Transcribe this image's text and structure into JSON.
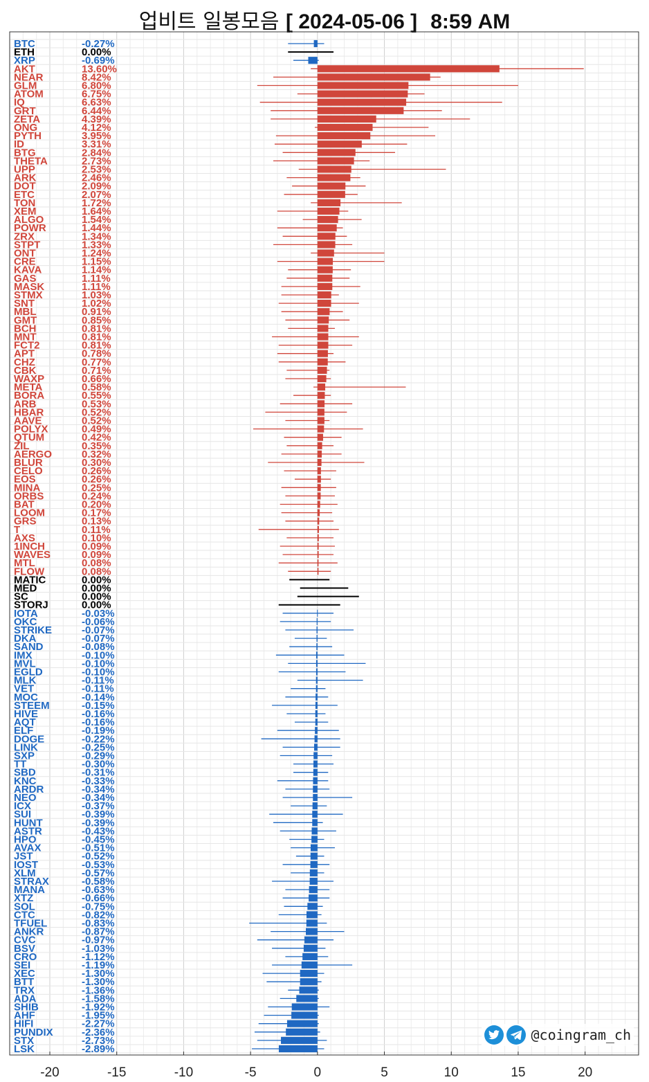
{
  "title": {
    "main": "업비트 일봉모음",
    "date": "[ 2024-05-06 ]",
    "time": "8:59 AM"
  },
  "watermark": {
    "handle": "@coingram_ch"
  },
  "colors": {
    "up": "#d0463b",
    "down": "#1f68c2",
    "flat": "#000000"
  },
  "chart_data": {
    "type": "bar",
    "orientation": "horizontal",
    "xlim": [
      -23,
      24
    ],
    "xticks": [
      -20,
      -15,
      -10,
      -5,
      0,
      5,
      10,
      15,
      20
    ],
    "grid": true,
    "items": [
      {
        "name": "BTC",
        "value": -0.27,
        "label": "-0.27%",
        "low": -2.2,
        "high": 0.5
      },
      {
        "name": "ETH",
        "value": 0.0,
        "label": "0.00%",
        "low": -2.2,
        "high": 1.2
      },
      {
        "name": "XRP",
        "value": -0.69,
        "label": "-0.69%",
        "low": -1.8,
        "high": 0.1
      },
      {
        "name": "AKT",
        "value": 13.6,
        "label": "13.60%",
        "low": -0.5,
        "high": 19.9
      },
      {
        "name": "NEAR",
        "value": 8.42,
        "label": "8.42%",
        "low": -3.3,
        "high": 9.2
      },
      {
        "name": "GLM",
        "value": 6.8,
        "label": "6.80%",
        "low": -4.5,
        "high": 15.0
      },
      {
        "name": "ATOM",
        "value": 6.75,
        "label": "6.75%",
        "low": -1.5,
        "high": 8.0
      },
      {
        "name": "IQ",
        "value": 6.63,
        "label": "6.63%",
        "low": -4.3,
        "high": 13.8
      },
      {
        "name": "GRT",
        "value": 6.44,
        "label": "6.44%",
        "low": -3.5,
        "high": 9.3
      },
      {
        "name": "ZETA",
        "value": 4.39,
        "label": "4.39%",
        "low": -3.5,
        "high": 11.4
      },
      {
        "name": "ONG",
        "value": 4.12,
        "label": "4.12%",
        "low": -0.2,
        "high": 8.3
      },
      {
        "name": "PYTH",
        "value": 3.95,
        "label": "3.95%",
        "low": -3.1,
        "high": 8.8
      },
      {
        "name": "ID",
        "value": 3.31,
        "label": "3.31%",
        "low": -3.2,
        "high": 6.7
      },
      {
        "name": "BTG",
        "value": 2.84,
        "label": "2.84%",
        "low": -2.6,
        "high": 5.8
      },
      {
        "name": "THETA",
        "value": 2.73,
        "label": "2.73%",
        "low": -3.3,
        "high": 3.9
      },
      {
        "name": "UPP",
        "value": 2.53,
        "label": "2.53%",
        "low": -1.4,
        "high": 9.6
      },
      {
        "name": "ARK",
        "value": 2.46,
        "label": "2.46%",
        "low": -2.3,
        "high": 3.2
      },
      {
        "name": "DOT",
        "value": 2.09,
        "label": "2.09%",
        "low": -1.9,
        "high": 3.6
      },
      {
        "name": "ETC",
        "value": 2.07,
        "label": "2.07%",
        "low": -2.5,
        "high": 3.0
      },
      {
        "name": "TON",
        "value": 1.72,
        "label": "1.72%",
        "low": -0.5,
        "high": 6.3
      },
      {
        "name": "XEM",
        "value": 1.64,
        "label": "1.64%",
        "low": -3.0,
        "high": 2.3
      },
      {
        "name": "ALGO",
        "value": 1.54,
        "label": "1.54%",
        "low": -1.1,
        "high": 3.3
      },
      {
        "name": "POWR",
        "value": 1.44,
        "label": "1.44%",
        "low": -3.0,
        "high": 1.9
      },
      {
        "name": "ZRX",
        "value": 1.34,
        "label": "1.34%",
        "low": -2.6,
        "high": 2.2
      },
      {
        "name": "STPT",
        "value": 1.33,
        "label": "1.33%",
        "low": -3.3,
        "high": 2.6
      },
      {
        "name": "ONT",
        "value": 1.24,
        "label": "1.24%",
        "low": -0.5,
        "high": 5.0
      },
      {
        "name": "CRE",
        "value": 1.15,
        "label": "1.15%",
        "low": -3.0,
        "high": 5.0
      },
      {
        "name": "KAVA",
        "value": 1.14,
        "label": "1.14%",
        "low": -2.2,
        "high": 2.5
      },
      {
        "name": "GAS",
        "value": 1.11,
        "label": "1.11%",
        "low": -2.3,
        "high": 2.4
      },
      {
        "name": "MASK",
        "value": 1.11,
        "label": "1.11%",
        "low": -2.7,
        "high": 3.2
      },
      {
        "name": "STMX",
        "value": 1.03,
        "label": "1.03%",
        "low": -2.7,
        "high": 1.6
      },
      {
        "name": "SNT",
        "value": 1.02,
        "label": "1.02%",
        "low": -2.9,
        "high": 3.1
      },
      {
        "name": "MBL",
        "value": 0.91,
        "label": "0.91%",
        "low": -2.7,
        "high": 1.9
      },
      {
        "name": "GMT",
        "value": 0.85,
        "label": "0.85%",
        "low": -2.4,
        "high": 2.4
      },
      {
        "name": "BCH",
        "value": 0.81,
        "label": "0.81%",
        "low": -2.2,
        "high": 1.3
      },
      {
        "name": "MNT",
        "value": 0.81,
        "label": "0.81%",
        "low": -3.4,
        "high": 3.1
      },
      {
        "name": "FCT2",
        "value": 0.81,
        "label": "0.81%",
        "low": -2.9,
        "high": 2.6
      },
      {
        "name": "APT",
        "value": 0.78,
        "label": "0.78%",
        "low": -3.0,
        "high": 1.2
      },
      {
        "name": "CHZ",
        "value": 0.77,
        "label": "0.77%",
        "low": -2.9,
        "high": 2.1
      },
      {
        "name": "CBK",
        "value": 0.71,
        "label": "0.71%",
        "low": -2.3,
        "high": 0.9
      },
      {
        "name": "WAXP",
        "value": 0.66,
        "label": "0.66%",
        "low": -2.4,
        "high": 1.0
      },
      {
        "name": "META",
        "value": 0.58,
        "label": "0.58%",
        "low": -0.3,
        "high": 6.6
      },
      {
        "name": "BORA",
        "value": 0.55,
        "label": "0.55%",
        "low": -1.8,
        "high": 1.0
      },
      {
        "name": "ARB",
        "value": 0.53,
        "label": "0.53%",
        "low": -2.8,
        "high": 2.6
      },
      {
        "name": "HBAR",
        "value": 0.52,
        "label": "0.52%",
        "low": -3.9,
        "high": 2.2
      },
      {
        "name": "AAVE",
        "value": 0.52,
        "label": "0.52%",
        "low": -2.4,
        "high": 0.9
      },
      {
        "name": "POLYX",
        "value": 0.49,
        "label": "0.49%",
        "low": -4.8,
        "high": 3.4
      },
      {
        "name": "QTUM",
        "value": 0.42,
        "label": "0.42%",
        "low": -2.5,
        "high": 1.8
      },
      {
        "name": "ZIL",
        "value": 0.35,
        "label": "0.35%",
        "low": -2.3,
        "high": 1.2
      },
      {
        "name": "AERGO",
        "value": 0.32,
        "label": "0.32%",
        "low": -2.7,
        "high": 1.8
      },
      {
        "name": "BLUR",
        "value": 0.3,
        "label": "0.30%",
        "low": -3.7,
        "high": 3.5
      },
      {
        "name": "CELO",
        "value": 0.26,
        "label": "0.26%",
        "low": -2.5,
        "high": 1.4
      },
      {
        "name": "EOS",
        "value": 0.26,
        "label": "0.26%",
        "low": -1.7,
        "high": 1.0
      },
      {
        "name": "MINA",
        "value": 0.25,
        "label": "0.25%",
        "low": -2.7,
        "high": 1.4
      },
      {
        "name": "ORBS",
        "value": 0.24,
        "label": "0.24%",
        "low": -2.4,
        "high": 1.3
      },
      {
        "name": "BAT",
        "value": 0.2,
        "label": "0.20%",
        "low": -2.8,
        "high": 1.5
      },
      {
        "name": "LOOM",
        "value": 0.17,
        "label": "0.17%",
        "low": -2.7,
        "high": 1.1
      },
      {
        "name": "GRS",
        "value": 0.13,
        "label": "0.13%",
        "low": -2.4,
        "high": 1.2
      },
      {
        "name": "T",
        "value": 0.11,
        "label": "0.11%",
        "low": -4.4,
        "high": 1.6
      },
      {
        "name": "AXS",
        "value": 0.1,
        "label": "0.10%",
        "low": -2.3,
        "high": 1.2
      },
      {
        "name": "1INCH",
        "value": 0.09,
        "label": "0.09%",
        "low": -2.8,
        "high": 1.3
      },
      {
        "name": "WAVES",
        "value": 0.09,
        "label": "0.09%",
        "low": -2.6,
        "high": 1.2
      },
      {
        "name": "MTL",
        "value": 0.08,
        "label": "0.08%",
        "low": -2.9,
        "high": 1.5
      },
      {
        "name": "FLOW",
        "value": 0.08,
        "label": "0.08%",
        "low": -2.2,
        "high": 1.0
      },
      {
        "name": "MATIC",
        "value": 0.0,
        "label": "0.00%",
        "low": -2.1,
        "high": 0.9
      },
      {
        "name": "MED",
        "value": 0.0,
        "label": "0.00%",
        "low": -1.3,
        "high": 2.3
      },
      {
        "name": "SC",
        "value": 0.0,
        "label": "0.00%",
        "low": -1.5,
        "high": 3.1
      },
      {
        "name": "STORJ",
        "value": 0.0,
        "label": "0.00%",
        "low": -2.9,
        "high": 1.7
      },
      {
        "name": "IOTA",
        "value": -0.03,
        "label": "-0.03%",
        "low": -2.6,
        "high": 1.2
      },
      {
        "name": "OKC",
        "value": -0.06,
        "label": "-0.06%",
        "low": -2.8,
        "high": 1.0
      },
      {
        "name": "STRIKE",
        "value": -0.07,
        "label": "-0.07%",
        "low": -2.4,
        "high": 2.7
      },
      {
        "name": "DKA",
        "value": -0.07,
        "label": "-0.07%",
        "low": -1.7,
        "high": 0.7
      },
      {
        "name": "SAND",
        "value": -0.08,
        "label": "-0.08%",
        "low": -2.1,
        "high": 1.1
      },
      {
        "name": "IMX",
        "value": -0.1,
        "label": "-0.10%",
        "low": -3.1,
        "high": 2.0
      },
      {
        "name": "MVL",
        "value": -0.1,
        "label": "-0.10%",
        "low": -2.2,
        "high": 3.6
      },
      {
        "name": "EGLD",
        "value": -0.1,
        "label": "-0.10%",
        "low": -2.9,
        "high": 2.1
      },
      {
        "name": "MLK",
        "value": -0.11,
        "label": "-0.11%",
        "low": -1.5,
        "high": 3.4
      },
      {
        "name": "VET",
        "value": -0.11,
        "label": "-0.11%",
        "low": -2.0,
        "high": 0.6
      },
      {
        "name": "MOC",
        "value": -0.14,
        "label": "-0.14%",
        "low": -2.4,
        "high": 0.8
      },
      {
        "name": "STEEM",
        "value": -0.15,
        "label": "-0.15%",
        "low": -3.4,
        "high": 1.5
      },
      {
        "name": "HIVE",
        "value": -0.16,
        "label": "-0.16%",
        "low": -2.3,
        "high": 0.6
      },
      {
        "name": "AQT",
        "value": -0.16,
        "label": "-0.16%",
        "low": -1.7,
        "high": 0.8
      },
      {
        "name": "ELF",
        "value": -0.19,
        "label": "-0.19%",
        "low": -3.0,
        "high": 1.6
      },
      {
        "name": "DOGE",
        "value": -0.22,
        "label": "-0.22%",
        "low": -4.2,
        "high": 1.7
      },
      {
        "name": "LINK",
        "value": -0.25,
        "label": "-0.25%",
        "low": -2.6,
        "high": 1.7
      },
      {
        "name": "SXP",
        "value": -0.29,
        "label": "-0.29%",
        "low": -2.8,
        "high": 1.1
      },
      {
        "name": "TT",
        "value": -0.3,
        "label": "-0.30%",
        "low": -1.8,
        "high": 1.2
      },
      {
        "name": "SBD",
        "value": -0.31,
        "label": "-0.31%",
        "low": -1.8,
        "high": 0.8
      },
      {
        "name": "KNC",
        "value": -0.33,
        "label": "-0.33%",
        "low": -3.0,
        "high": 0.8
      },
      {
        "name": "ARDR",
        "value": -0.34,
        "label": "-0.34%",
        "low": -2.4,
        "high": 0.9
      },
      {
        "name": "NEO",
        "value": -0.34,
        "label": "-0.34%",
        "low": -2.6,
        "high": 2.6
      },
      {
        "name": "ICX",
        "value": -0.37,
        "label": "-0.37%",
        "low": -2.0,
        "high": 0.7
      },
      {
        "name": "SUI",
        "value": -0.39,
        "label": "-0.39%",
        "low": -3.6,
        "high": 1.9
      },
      {
        "name": "HUNT",
        "value": -0.39,
        "label": "-0.39%",
        "low": -3.3,
        "high": 0.4
      },
      {
        "name": "ASTR",
        "value": -0.43,
        "label": "-0.43%",
        "low": -2.8,
        "high": 1.4
      },
      {
        "name": "HPO",
        "value": -0.45,
        "label": "-0.45%",
        "low": -2.1,
        "high": 0.5
      },
      {
        "name": "AVAX",
        "value": -0.51,
        "label": "-0.51%",
        "low": -2.0,
        "high": 1.3
      },
      {
        "name": "JST",
        "value": -0.52,
        "label": "-0.52%",
        "low": -1.6,
        "high": 0.5
      },
      {
        "name": "IOST",
        "value": -0.53,
        "label": "-0.53%",
        "low": -2.6,
        "high": 0.9
      },
      {
        "name": "XLM",
        "value": -0.57,
        "label": "-0.57%",
        "low": -2.0,
        "high": 0.5
      },
      {
        "name": "STRAX",
        "value": -0.58,
        "label": "-0.58%",
        "low": -3.4,
        "high": 1.2
      },
      {
        "name": "MANA",
        "value": -0.63,
        "label": "-0.63%",
        "low": -2.4,
        "high": 0.9
      },
      {
        "name": "XTZ",
        "value": -0.66,
        "label": "-0.66%",
        "low": -2.6,
        "high": 0.9
      },
      {
        "name": "SOL",
        "value": -0.75,
        "label": "-0.75%",
        "low": -2.5,
        "high": 0.4
      },
      {
        "name": "CTC",
        "value": -0.82,
        "label": "-0.82%",
        "low": -2.9,
        "high": 0.3
      },
      {
        "name": "TFUEL",
        "value": -0.83,
        "label": "-0.83%",
        "low": -5.1,
        "high": 0.7
      },
      {
        "name": "ANKR",
        "value": -0.87,
        "label": "-0.87%",
        "low": -3.5,
        "high": 2.0
      },
      {
        "name": "CVC",
        "value": -0.97,
        "label": "-0.97%",
        "low": -4.5,
        "high": 1.2
      },
      {
        "name": "BSV",
        "value": -1.03,
        "label": "-1.03%",
        "low": -3.4,
        "high": 0.6
      },
      {
        "name": "CRO",
        "value": -1.12,
        "label": "-1.12%",
        "low": -2.4,
        "high": 0.8
      },
      {
        "name": "SEI",
        "value": -1.19,
        "label": "-1.19%",
        "low": -3.4,
        "high": 2.6
      },
      {
        "name": "XEC",
        "value": -1.3,
        "label": "-1.30%",
        "low": -4.1,
        "high": 0.5
      },
      {
        "name": "BTT",
        "value": -1.3,
        "label": "-1.30%",
        "low": -3.8,
        "high": 0.3
      },
      {
        "name": "TRX",
        "value": -1.36,
        "label": "-1.36%",
        "low": -2.2,
        "high": 0.1
      },
      {
        "name": "ADA",
        "value": -1.58,
        "label": "-1.58%",
        "low": -2.8,
        "high": 0.1
      },
      {
        "name": "SHIB",
        "value": -1.92,
        "label": "-1.92%",
        "low": -3.7,
        "high": 0.9
      },
      {
        "name": "AHF",
        "value": -1.95,
        "label": "-1.95%",
        "low": -4.0,
        "high": 0.1
      },
      {
        "name": "HIFI",
        "value": -2.27,
        "label": "-2.27%",
        "low": -4.4,
        "high": 0.1
      },
      {
        "name": "PUNDIX",
        "value": -2.36,
        "label": "-2.36%",
        "low": -4.7,
        "high": 0.2
      },
      {
        "name": "STX",
        "value": -2.73,
        "label": "-2.73%",
        "low": -4.5,
        "high": 0.7
      },
      {
        "name": "LSK",
        "value": -2.89,
        "label": "-2.89%",
        "low": -4.9,
        "high": 0.5
      }
    ]
  }
}
